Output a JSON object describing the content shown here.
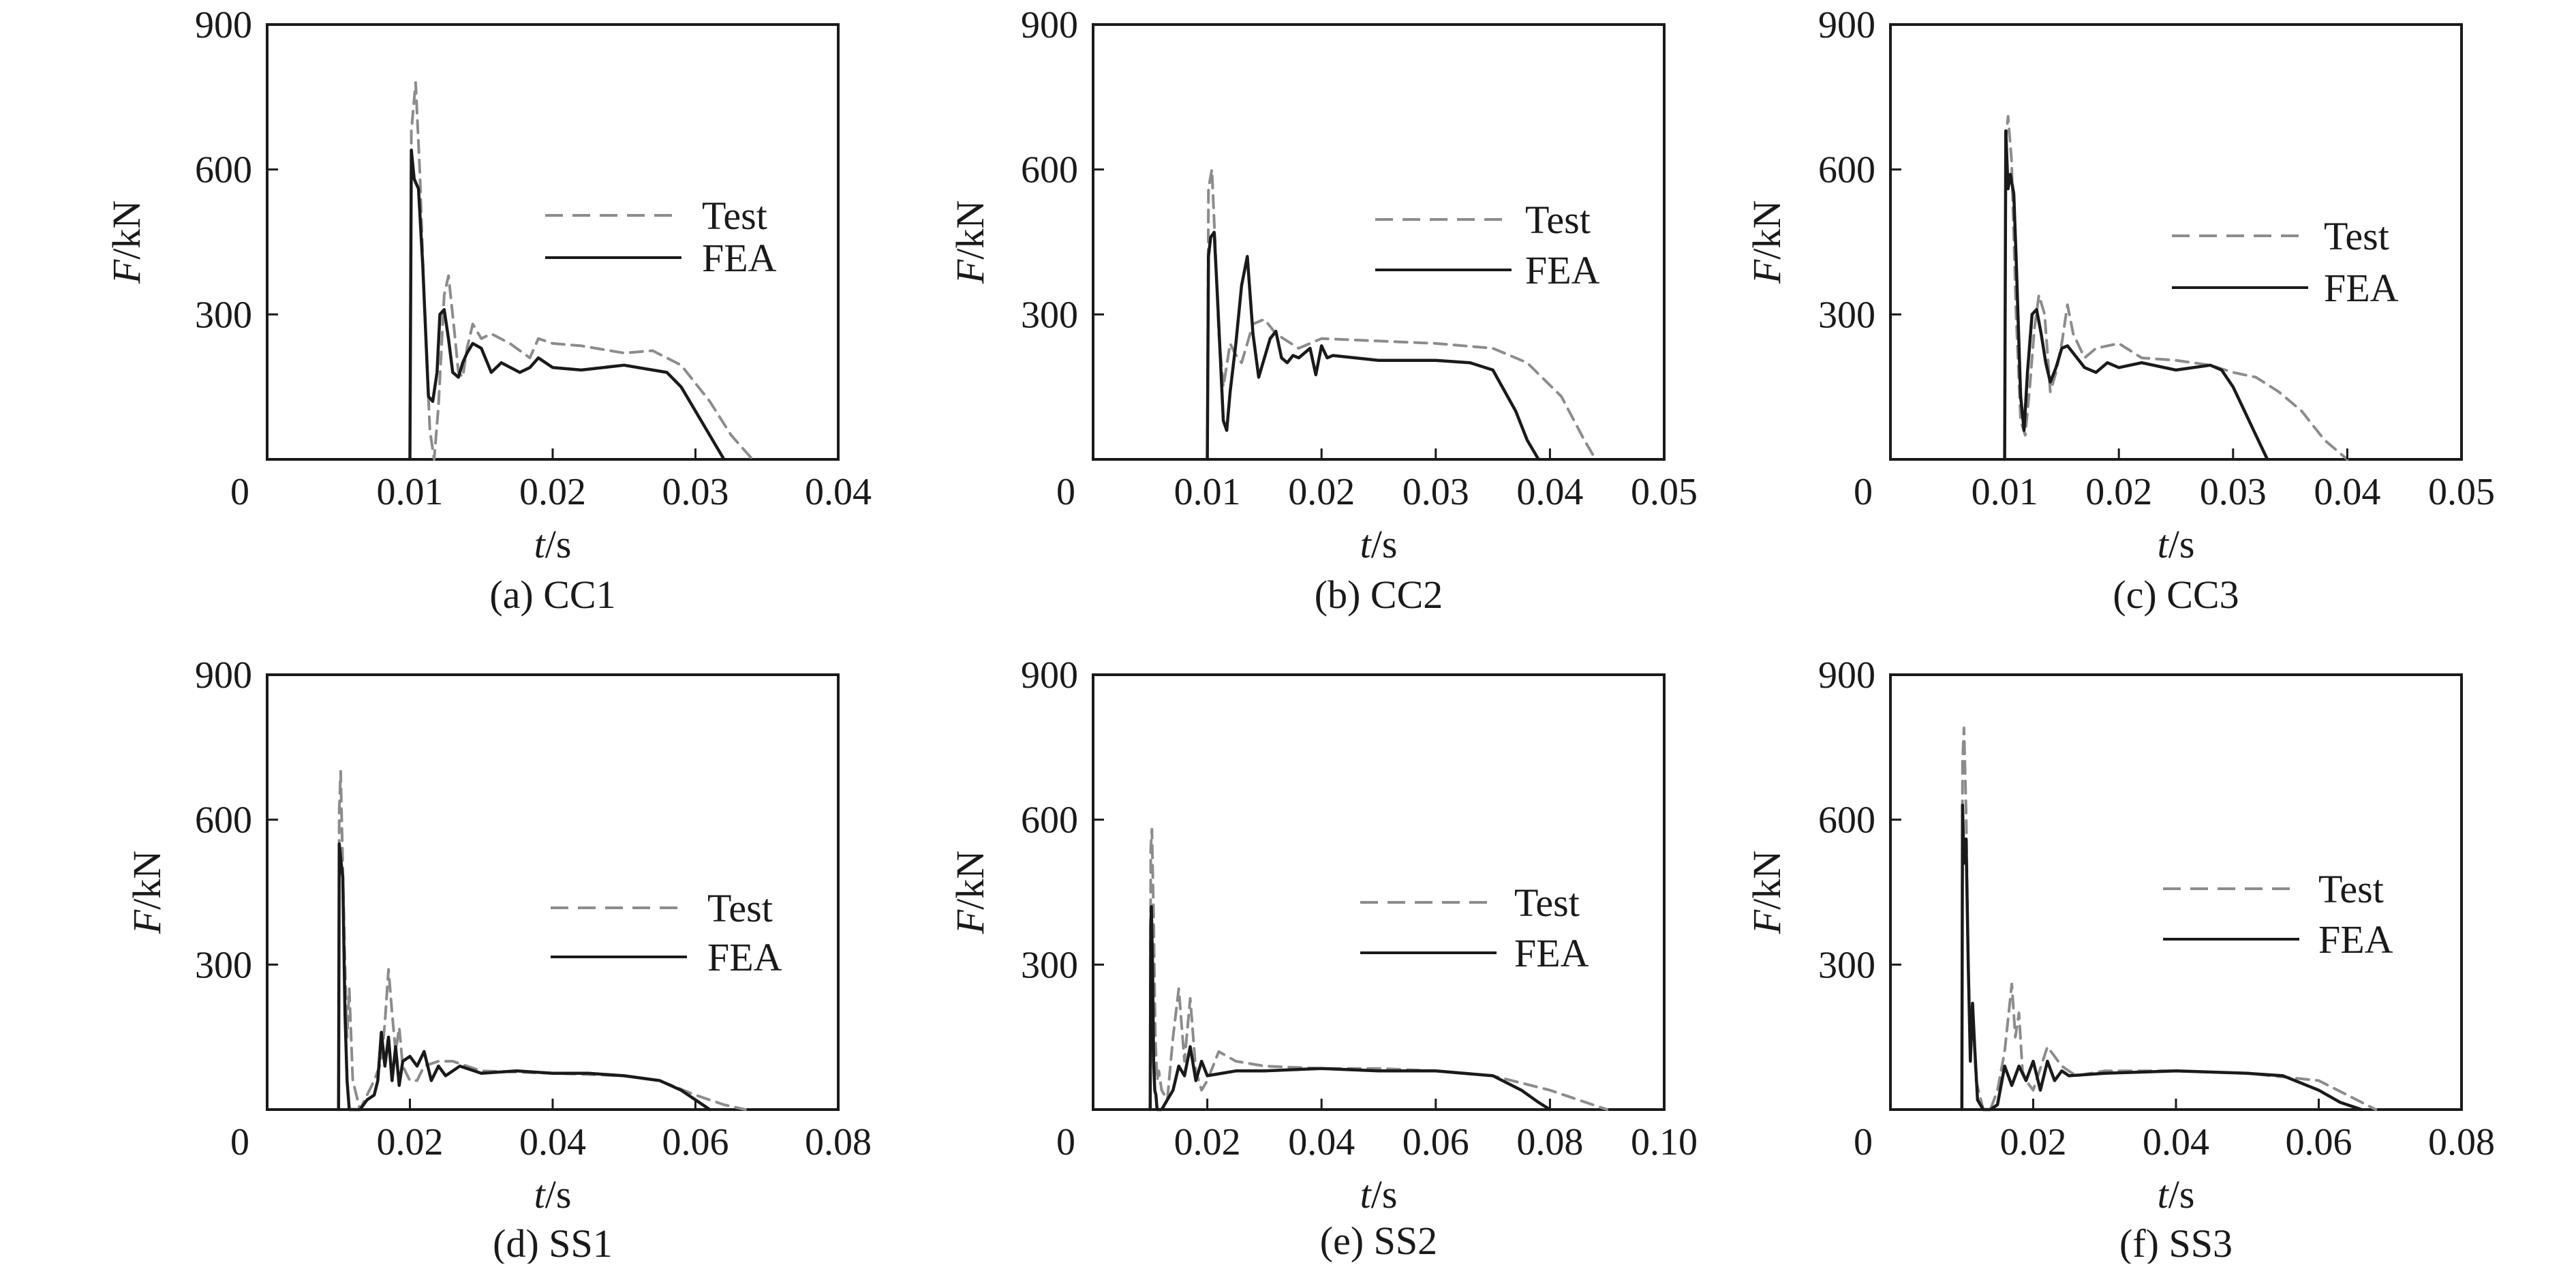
{
  "chart_data": [
    {
      "type": "line",
      "caption": "(a) CC1",
      "xlabel_var": "t",
      "xlabel_unit": "/s",
      "ylabel_var": "F",
      "ylabel_unit": "/kN",
      "xlim": [
        0,
        0.04
      ],
      "ylim": [
        0,
        900
      ],
      "xticks": [
        "0",
        "0.01",
        "0.02",
        "0.03",
        "0.04"
      ],
      "xtick_values": [
        0,
        0.01,
        0.02,
        0.03,
        0.04
      ],
      "yticks": [
        "300",
        "600",
        "900"
      ],
      "ytick_values": [
        300,
        600,
        900
      ],
      "legend_position": "upper-right",
      "series": [
        {
          "name": "Test",
          "style": "dashed",
          "color": "#8c8c8c",
          "x": [
            0.01,
            0.0101,
            0.0104,
            0.0107,
            0.011,
            0.0114,
            0.0117,
            0.012,
            0.0124,
            0.0127,
            0.0131,
            0.0134,
            0.0137,
            0.014,
            0.0144,
            0.015,
            0.0157,
            0.017,
            0.0184,
            0.019,
            0.02,
            0.022,
            0.025,
            0.027,
            0.029,
            0.031,
            0.0325,
            0.034
          ],
          "y": [
            0,
            680,
            780,
            590,
            330,
            60,
            0,
            110,
            340,
            380,
            270,
            180,
            170,
            230,
            280,
            250,
            260,
            240,
            210,
            250,
            240,
            235,
            220,
            225,
            195,
            120,
            50,
            0
          ]
        },
        {
          "name": "FEA",
          "style": "solid",
          "color": "#1a1a1a",
          "x": [
            0.01,
            0.0101,
            0.0103,
            0.0106,
            0.0109,
            0.0113,
            0.0116,
            0.0119,
            0.0121,
            0.0124,
            0.0127,
            0.013,
            0.0134,
            0.0137,
            0.014,
            0.0144,
            0.015,
            0.0157,
            0.0164,
            0.0177,
            0.0184,
            0.019,
            0.02,
            0.022,
            0.025,
            0.027,
            0.028,
            0.029,
            0.03,
            0.031,
            0.032
          ],
          "y": [
            0,
            640,
            580,
            560,
            400,
            130,
            120,
            180,
            300,
            310,
            250,
            180,
            170,
            200,
            220,
            240,
            230,
            180,
            200,
            180,
            190,
            210,
            190,
            185,
            195,
            185,
            180,
            150,
            100,
            50,
            0
          ]
        }
      ]
    },
    {
      "type": "line",
      "caption": "(b) CC2",
      "xlabel_var": "t",
      "xlabel_unit": "/s",
      "ylabel_var": "F",
      "ylabel_unit": "/kN",
      "xlim": [
        0,
        0.05
      ],
      "ylim": [
        0,
        900
      ],
      "xticks": [
        "0",
        "0.01",
        "0.02",
        "0.03",
        "0.04",
        "0.05"
      ],
      "xtick_values": [
        0,
        0.01,
        0.02,
        0.03,
        0.04,
        0.05
      ],
      "yticks": [
        "300",
        "600",
        "900"
      ],
      "ytick_values": [
        300,
        600,
        900
      ],
      "legend_position": "upper-right",
      "series": [
        {
          "name": "Test",
          "style": "dashed",
          "color": "#8c8c8c",
          "x": [
            0.01,
            0.0101,
            0.0104,
            0.0107,
            0.011,
            0.0114,
            0.012,
            0.0124,
            0.013,
            0.014,
            0.015,
            0.016,
            0.018,
            0.02,
            0.025,
            0.03,
            0.035,
            0.038,
            0.041,
            0.043,
            0.044
          ],
          "y": [
            0,
            560,
            600,
            440,
            260,
            150,
            240,
            220,
            200,
            280,
            290,
            260,
            230,
            250,
            245,
            240,
            230,
            200,
            130,
            40,
            0
          ]
        },
        {
          "name": "FEA",
          "style": "solid",
          "color": "#1a1a1a",
          "x": [
            0.01,
            0.0101,
            0.0103,
            0.0106,
            0.0109,
            0.0114,
            0.0117,
            0.012,
            0.0125,
            0.013,
            0.0135,
            0.014,
            0.0145,
            0.015,
            0.0155,
            0.016,
            0.0165,
            0.017,
            0.0175,
            0.018,
            0.019,
            0.0195,
            0.02,
            0.0205,
            0.021,
            0.025,
            0.03,
            0.033,
            0.035,
            0.037,
            0.038,
            0.039
          ],
          "y": [
            0,
            420,
            460,
            470,
            330,
            80,
            60,
            140,
            240,
            360,
            420,
            260,
            170,
            210,
            250,
            265,
            210,
            200,
            215,
            210,
            230,
            175,
            235,
            210,
            215,
            205,
            205,
            200,
            185,
            100,
            40,
            0
          ]
        }
      ]
    },
    {
      "type": "line",
      "caption": "(c) CC3",
      "xlabel_var": "t",
      "xlabel_unit": "/s",
      "ylabel_var": "F",
      "ylabel_unit": "/kN",
      "xlim": [
        0,
        0.05
      ],
      "ylim": [
        0,
        900
      ],
      "xticks": [
        "0",
        "0.01",
        "0.02",
        "0.03",
        "0.04",
        "0.05"
      ],
      "xtick_values": [
        0,
        0.01,
        0.02,
        0.03,
        0.04,
        0.05
      ],
      "yticks": [
        "300",
        "600",
        "900"
      ],
      "ytick_values": [
        300,
        600,
        900
      ],
      "legend_position": "upper-right",
      "series": [
        {
          "name": "Test",
          "style": "dashed",
          "color": "#8c8c8c",
          "x": [
            0.01,
            0.0101,
            0.0103,
            0.0106,
            0.011,
            0.0114,
            0.0118,
            0.0122,
            0.0126,
            0.013,
            0.0135,
            0.014,
            0.0145,
            0.015,
            0.0155,
            0.016,
            0.017,
            0.018,
            0.02,
            0.022,
            0.025,
            0.028,
            0.03,
            0.032,
            0.034,
            0.036,
            0.038,
            0.04
          ],
          "y": [
            0,
            660,
            710,
            620,
            300,
            80,
            50,
            150,
            270,
            340,
            300,
            140,
            180,
            240,
            320,
            260,
            210,
            230,
            240,
            210,
            205,
            195,
            180,
            170,
            140,
            100,
            40,
            0
          ]
        },
        {
          "name": "FEA",
          "style": "solid",
          "color": "#1a1a1a",
          "x": [
            0.01,
            0.0101,
            0.0103,
            0.0105,
            0.0108,
            0.011,
            0.0114,
            0.0117,
            0.012,
            0.0124,
            0.0128,
            0.0132,
            0.0136,
            0.014,
            0.0145,
            0.015,
            0.0155,
            0.016,
            0.017,
            0.018,
            0.019,
            0.02,
            0.022,
            0.025,
            0.028,
            0.029,
            0.03,
            0.031,
            0.032,
            0.033
          ],
          "y": [
            0,
            680,
            560,
            590,
            550,
            420,
            130,
            60,
            180,
            300,
            310,
            260,
            200,
            160,
            190,
            230,
            235,
            220,
            190,
            180,
            200,
            190,
            200,
            185,
            195,
            185,
            150,
            100,
            50,
            0
          ]
        }
      ]
    },
    {
      "type": "line",
      "caption": "(d) SS1",
      "xlabel_var": "t",
      "xlabel_unit": "/s",
      "ylabel_var": "F",
      "ylabel_unit": "/kN",
      "xlim": [
        0,
        0.08
      ],
      "ylim": [
        0,
        900
      ],
      "xticks": [
        "0",
        "0.02",
        "0.04",
        "0.06",
        "0.08"
      ],
      "xtick_values": [
        0,
        0.02,
        0.04,
        0.06,
        0.08
      ],
      "yticks": [
        "300",
        "600",
        "900"
      ],
      "ytick_values": [
        300,
        600,
        900
      ],
      "legend_position": "upper-right",
      "series": [
        {
          "name": "Test",
          "style": "dashed",
          "color": "#8c8c8c",
          "x": [
            0.01,
            0.0101,
            0.0103,
            0.0106,
            0.0109,
            0.0112,
            0.0115,
            0.012,
            0.013,
            0.014,
            0.015,
            0.016,
            0.0165,
            0.017,
            0.0175,
            0.018,
            0.0185,
            0.019,
            0.02,
            0.021,
            0.022,
            0.024,
            0.026,
            0.03,
            0.04,
            0.05,
            0.055,
            0.06,
            0.064,
            0.067
          ],
          "y": [
            0,
            620,
            700,
            500,
            300,
            150,
            250,
            60,
            0,
            30,
            60,
            100,
            180,
            290,
            200,
            120,
            170,
            90,
            60,
            60,
            90,
            100,
            100,
            80,
            75,
            70,
            60,
            30,
            10,
            0
          ]
        },
        {
          "name": "FEA",
          "style": "solid",
          "color": "#1a1a1a",
          "x": [
            0.01,
            0.0101,
            0.0103,
            0.0106,
            0.0109,
            0.0112,
            0.0115,
            0.012,
            0.013,
            0.014,
            0.015,
            0.0155,
            0.016,
            0.0165,
            0.017,
            0.0175,
            0.018,
            0.0185,
            0.019,
            0.02,
            0.021,
            0.022,
            0.023,
            0.024,
            0.025,
            0.027,
            0.03,
            0.035,
            0.04,
            0.045,
            0.05,
            0.055,
            0.058,
            0.06,
            0.062
          ],
          "y": [
            0,
            550,
            520,
            480,
            200,
            60,
            0,
            0,
            0,
            20,
            30,
            60,
            160,
            90,
            150,
            60,
            130,
            50,
            100,
            110,
            90,
            120,
            60,
            90,
            70,
            90,
            75,
            80,
            75,
            75,
            70,
            60,
            40,
            20,
            0
          ]
        }
      ]
    },
    {
      "type": "line",
      "caption": "(e) SS2",
      "xlabel_var": "t",
      "xlabel_unit": "/s",
      "ylabel_var": "F",
      "ylabel_unit": "/kN",
      "xlim": [
        0,
        0.1
      ],
      "ylim": [
        0,
        900
      ],
      "xticks": [
        "0",
        "0.02",
        "0.04",
        "0.06",
        "0.08",
        "0.10"
      ],
      "xtick_values": [
        0,
        0.02,
        0.04,
        0.06,
        0.08,
        0.1
      ],
      "yticks": [
        "300",
        "600",
        "900"
      ],
      "ytick_values": [
        300,
        600,
        900
      ],
      "legend_position": "upper-right",
      "series": [
        {
          "name": "Test",
          "style": "dashed",
          "color": "#8c8c8c",
          "x": [
            0.01,
            0.0101,
            0.0103,
            0.0106,
            0.0109,
            0.0112,
            0.0115,
            0.012,
            0.013,
            0.014,
            0.015,
            0.016,
            0.017,
            0.018,
            0.019,
            0.02,
            0.022,
            0.025,
            0.03,
            0.04,
            0.05,
            0.06,
            0.07,
            0.08,
            0.085,
            0.09
          ],
          "y": [
            0,
            540,
            580,
            400,
            150,
            60,
            80,
            40,
            20,
            150,
            250,
            100,
            230,
            80,
            40,
            60,
            120,
            100,
            90,
            85,
            85,
            80,
            70,
            40,
            20,
            0
          ]
        },
        {
          "name": "FEA",
          "style": "solid",
          "color": "#1a1a1a",
          "x": [
            0.01,
            0.0101,
            0.0102,
            0.0104,
            0.0106,
            0.0108,
            0.011,
            0.0112,
            0.0115,
            0.012,
            0.013,
            0.014,
            0.015,
            0.016,
            0.017,
            0.018,
            0.019,
            0.02,
            0.025,
            0.03,
            0.04,
            0.05,
            0.06,
            0.07,
            0.075,
            0.078,
            0.08
          ],
          "y": [
            0,
            380,
            420,
            300,
            100,
            40,
            30,
            0,
            0,
            0,
            20,
            40,
            90,
            70,
            130,
            60,
            100,
            70,
            80,
            80,
            85,
            80,
            80,
            70,
            40,
            15,
            0
          ]
        }
      ]
    },
    {
      "type": "line",
      "caption": "(f) SS3",
      "xlabel_var": "t",
      "xlabel_unit": "/s",
      "ylabel_var": "F",
      "ylabel_unit": "/kN",
      "xlim": [
        0,
        0.08
      ],
      "ylim": [
        0,
        900
      ],
      "xticks": [
        "0",
        "0.02",
        "0.04",
        "0.06",
        "0.08"
      ],
      "xtick_values": [
        0,
        0.02,
        0.04,
        0.06,
        0.08
      ],
      "yticks": [
        "300",
        "600",
        "900"
      ],
      "ytick_values": [
        300,
        600,
        900
      ],
      "legend_position": "upper-right",
      "series": [
        {
          "name": "Test",
          "style": "dashed",
          "color": "#8c8c8c",
          "x": [
            0.01,
            0.0101,
            0.0103,
            0.0106,
            0.0109,
            0.0112,
            0.0115,
            0.012,
            0.013,
            0.014,
            0.015,
            0.016,
            0.017,
            0.0175,
            0.018,
            0.0185,
            0.019,
            0.02,
            0.022,
            0.024,
            0.026,
            0.03,
            0.04,
            0.05,
            0.06,
            0.064,
            0.068
          ],
          "y": [
            0,
            720,
            790,
            620,
            300,
            120,
            220,
            60,
            0,
            0,
            40,
            120,
            260,
            150,
            200,
            80,
            60,
            40,
            130,
            90,
            70,
            80,
            80,
            75,
            60,
            30,
            0
          ]
        },
        {
          "name": "FEA",
          "style": "solid",
          "color": "#1a1a1a",
          "x": [
            0.01,
            0.0101,
            0.0103,
            0.0106,
            0.0109,
            0.0112,
            0.0115,
            0.0118,
            0.0122,
            0.013,
            0.014,
            0.015,
            0.016,
            0.017,
            0.018,
            0.019,
            0.02,
            0.021,
            0.022,
            0.023,
            0.024,
            0.025,
            0.03,
            0.04,
            0.05,
            0.055,
            0.06,
            0.063,
            0.066
          ],
          "y": [
            0,
            630,
            510,
            560,
            300,
            100,
            220,
            130,
            20,
            0,
            0,
            10,
            90,
            50,
            90,
            60,
            100,
            40,
            100,
            60,
            80,
            70,
            75,
            80,
            75,
            70,
            40,
            15,
            0
          ]
        }
      ]
    }
  ]
}
